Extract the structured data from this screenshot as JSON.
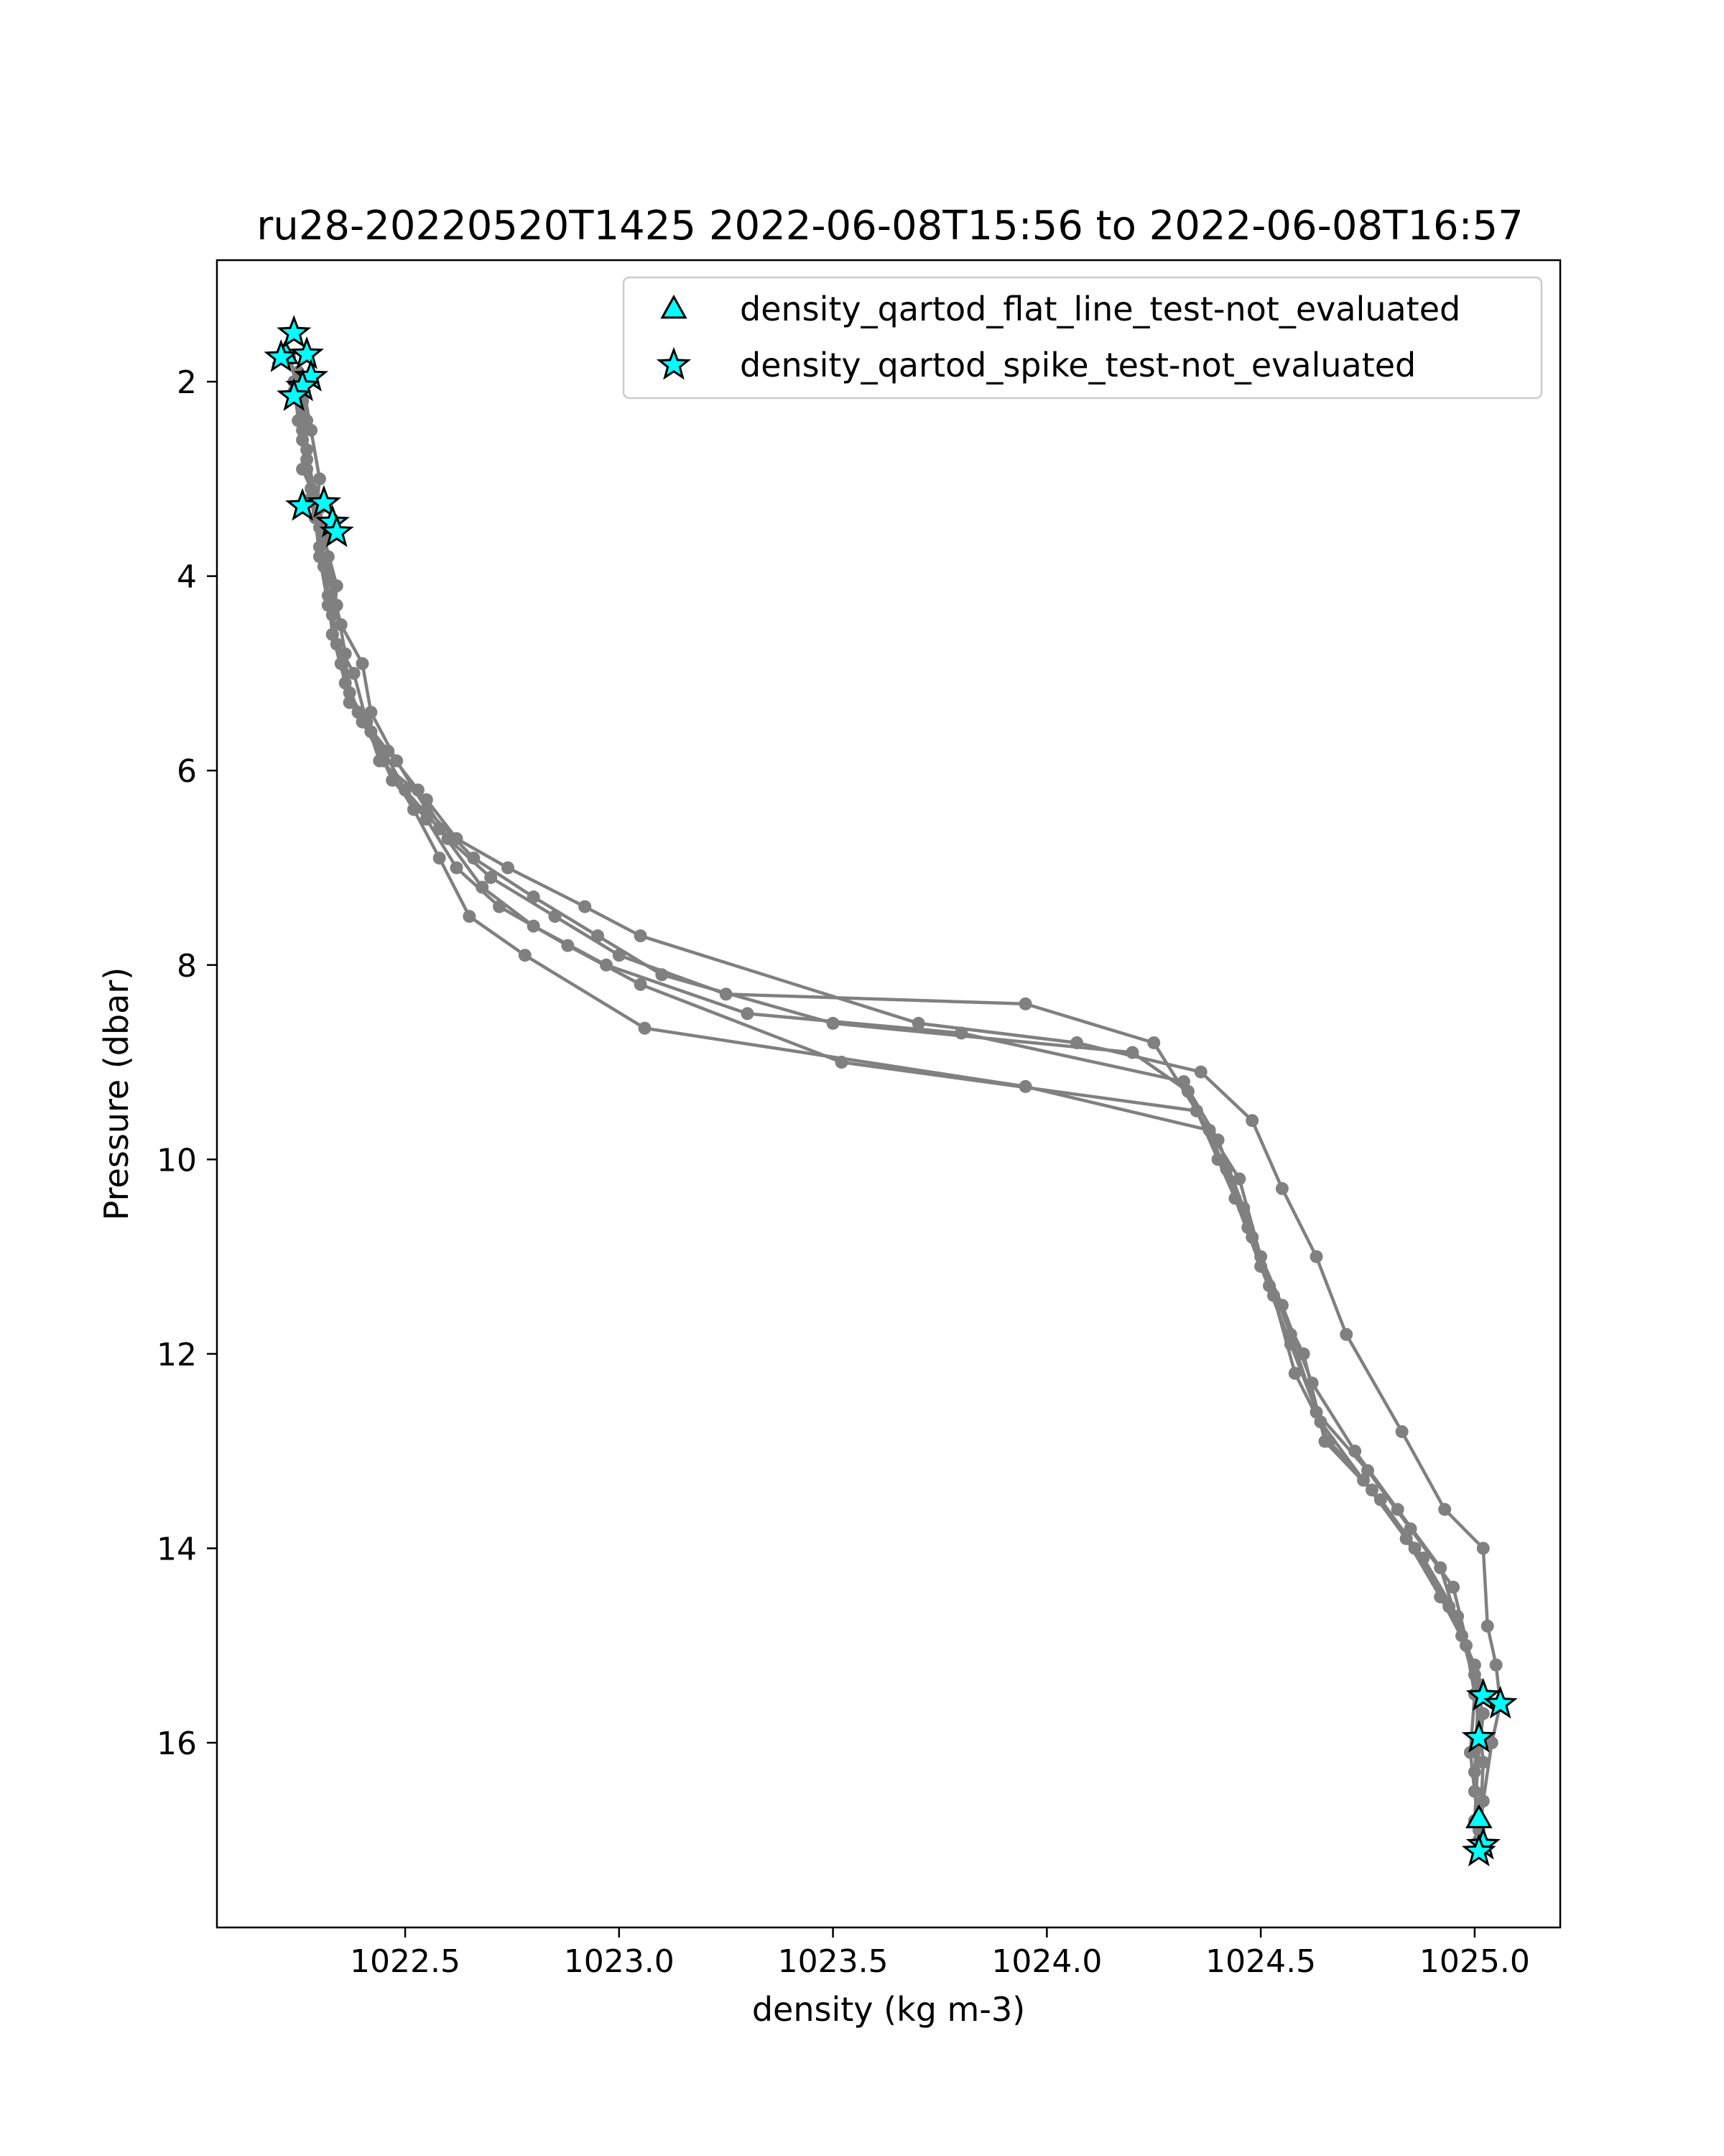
{
  "chart_data": {
    "type": "scatter",
    "title": "ru28-20220520T1425 2022-06-08T15:56 to 2022-06-08T16:57",
    "xlabel": "density (kg m-3)",
    "ylabel": "Pressure (dbar)",
    "xlim": [
      1022.06,
      1025.2
    ],
    "ylim": [
      17.9,
      0.75
    ],
    "y_inverted": true,
    "grid": false,
    "legend_position": "top-right",
    "xticks": [
      1022.5,
      1023.0,
      1023.5,
      1024.0,
      1024.5,
      1025.0
    ],
    "xtick_labels": [
      "1022.5",
      "1023.0",
      "1023.5",
      "1024.0",
      "1024.5",
      "1025.0"
    ],
    "yticks": [
      2,
      4,
      6,
      8,
      10,
      12,
      14,
      16
    ],
    "ytick_labels": [
      "2",
      "4",
      "6",
      "8",
      "10",
      "12",
      "14",
      "16"
    ],
    "colors": {
      "profile_line": "#808080",
      "flag_fill": "#00ffff",
      "flag_edge": "#000000"
    },
    "profile_series": [
      {
        "x": [
          1022.23,
          1022.26,
          1022.27,
          1022.29,
          1022.31,
          1022.34,
          1022.33,
          1022.38,
          1022.41,
          1022.44,
          1022.55,
          1022.62,
          1022.74,
          1022.92,
          1023.05,
          1023.7,
          1024.07,
          1024.36,
          1024.48,
          1024.55,
          1024.63,
          1024.7,
          1024.83,
          1024.93,
          1025.02,
          1025.03,
          1025.05,
          1025.06,
          1025.04,
          1025.02,
          1025.01
        ],
        "y": [
          1.75,
          2.2,
          2.7,
          3.2,
          3.6,
          4.1,
          4.6,
          5.0,
          5.5,
          5.9,
          6.3,
          6.7,
          7.0,
          7.4,
          7.7,
          8.6,
          8.8,
          9.1,
          9.6,
          10.3,
          11.0,
          11.8,
          12.8,
          13.6,
          14.0,
          14.8,
          15.2,
          15.6,
          16.0,
          16.6,
          17.0
        ]
      },
      {
        "x": [
          1022.25,
          1022.27,
          1022.26,
          1022.3,
          1022.32,
          1022.34,
          1022.36,
          1022.37,
          1022.46,
          1022.53,
          1022.6,
          1022.7,
          1022.85,
          1023.0,
          1023.25,
          1023.95,
          1024.25,
          1024.35,
          1024.45,
          1024.5,
          1024.57,
          1024.63,
          1024.75,
          1024.85,
          1024.95,
          1025.0,
          1025.02,
          1025.01
        ],
        "y": [
          1.9,
          2.4,
          2.9,
          3.3,
          3.8,
          4.3,
          4.8,
          5.3,
          5.8,
          6.2,
          6.7,
          7.1,
          7.5,
          7.9,
          8.3,
          8.4,
          8.8,
          9.5,
          10.2,
          11.0,
          11.8,
          12.6,
          13.2,
          13.8,
          14.4,
          15.3,
          16.2,
          17.1
        ]
      },
      {
        "x": [
          1022.26,
          1022.28,
          1022.3,
          1022.29,
          1022.32,
          1022.35,
          1022.4,
          1022.42,
          1022.48,
          1022.55,
          1022.66,
          1022.8,
          1022.95,
          1023.1,
          1023.5,
          1024.2,
          1024.33,
          1024.4,
          1024.48,
          1024.55,
          1024.62,
          1024.72,
          1024.82,
          1024.92,
          1024.97,
          1025.02,
          1025.0
        ],
        "y": [
          2.0,
          2.5,
          3.0,
          3.4,
          4.0,
          4.5,
          4.9,
          5.4,
          5.9,
          6.4,
          6.9,
          7.3,
          7.7,
          8.1,
          8.6,
          8.9,
          9.3,
          10.0,
          10.8,
          11.5,
          12.3,
          13.0,
          13.6,
          14.2,
          14.9,
          15.7,
          16.5
        ]
      },
      {
        "x": [
          1022.24,
          1022.26,
          1022.28,
          1022.3,
          1022.31,
          1022.33,
          1022.35,
          1022.39,
          1022.45,
          1022.5,
          1022.58,
          1022.68,
          1022.8,
          1022.97,
          1023.3,
          1023.8,
          1024.32,
          1024.4,
          1024.46,
          1024.52,
          1024.6,
          1024.65,
          1024.78,
          1024.88,
          1024.96,
          1025.01,
          1025.0
        ],
        "y": [
          2.1,
          2.6,
          3.1,
          3.5,
          3.9,
          4.4,
          4.9,
          5.4,
          5.8,
          6.2,
          6.6,
          7.2,
          7.6,
          8.0,
          8.5,
          8.7,
          9.2,
          9.8,
          10.5,
          11.3,
          12.0,
          12.9,
          13.5,
          14.1,
          14.7,
          15.4,
          16.3
        ]
      },
      {
        "x": [
          1022.25,
          1022.26,
          1022.27,
          1022.29,
          1022.3,
          1022.32,
          1022.34,
          1022.37,
          1022.42,
          1022.47,
          1022.55,
          1022.62,
          1022.72,
          1022.88,
          1023.05,
          1023.52,
          1024.35,
          1024.42,
          1024.47,
          1024.53,
          1024.58,
          1024.66,
          1024.76,
          1024.86,
          1024.94,
          1025.0,
          1025.01,
          1025.0
        ],
        "y": [
          2.05,
          2.5,
          2.9,
          3.4,
          3.8,
          4.3,
          4.7,
          5.2,
          5.6,
          6.1,
          6.5,
          7.0,
          7.4,
          7.8,
          8.2,
          9.0,
          9.5,
          10.1,
          10.7,
          11.4,
          12.2,
          12.9,
          13.4,
          14.0,
          14.6,
          15.2,
          16.0,
          16.8
        ]
      },
      {
        "x": [
          1022.24,
          1022.25,
          1022.27,
          1022.28,
          1022.3,
          1022.32,
          1022.33,
          1022.36,
          1022.4,
          1022.45,
          1022.52,
          1022.58,
          1022.65,
          1022.78,
          1023.06,
          1023.95,
          1024.38,
          1024.44,
          1024.5,
          1024.57,
          1024.64,
          1024.74,
          1024.84,
          1024.92,
          1024.98,
          1025.0,
          1024.99,
          1025.01
        ],
        "y": [
          2.0,
          2.4,
          2.8,
          3.2,
          3.7,
          4.2,
          4.6,
          5.1,
          5.5,
          5.9,
          6.4,
          6.9,
          7.5,
          7.9,
          8.65,
          9.25,
          9.7,
          10.4,
          11.1,
          11.9,
          12.7,
          13.3,
          13.9,
          14.5,
          15.0,
          15.5,
          16.1,
          16.9
        ]
      }
    ],
    "series": [
      {
        "name": "density_qartod_flat_line_test-not_evaluated",
        "marker": "triangle",
        "x": [
          1022.22,
          1025.01
        ],
        "y": [
          1.72,
          16.78
        ]
      },
      {
        "name": "density_qartod_spike_test-not_evaluated",
        "marker": "star",
        "x": [
          1022.24,
          1022.21,
          1022.27,
          1022.28,
          1022.26,
          1022.24,
          1022.26,
          1022.31,
          1022.33,
          1022.34,
          1025.02,
          1025.06,
          1025.01,
          1025.02,
          1025.01
        ],
        "y": [
          1.5,
          1.75,
          1.72,
          1.95,
          2.05,
          2.15,
          3.28,
          3.25,
          3.45,
          3.55,
          15.52,
          15.6,
          15.95,
          17.05,
          17.12
        ]
      }
    ]
  }
}
